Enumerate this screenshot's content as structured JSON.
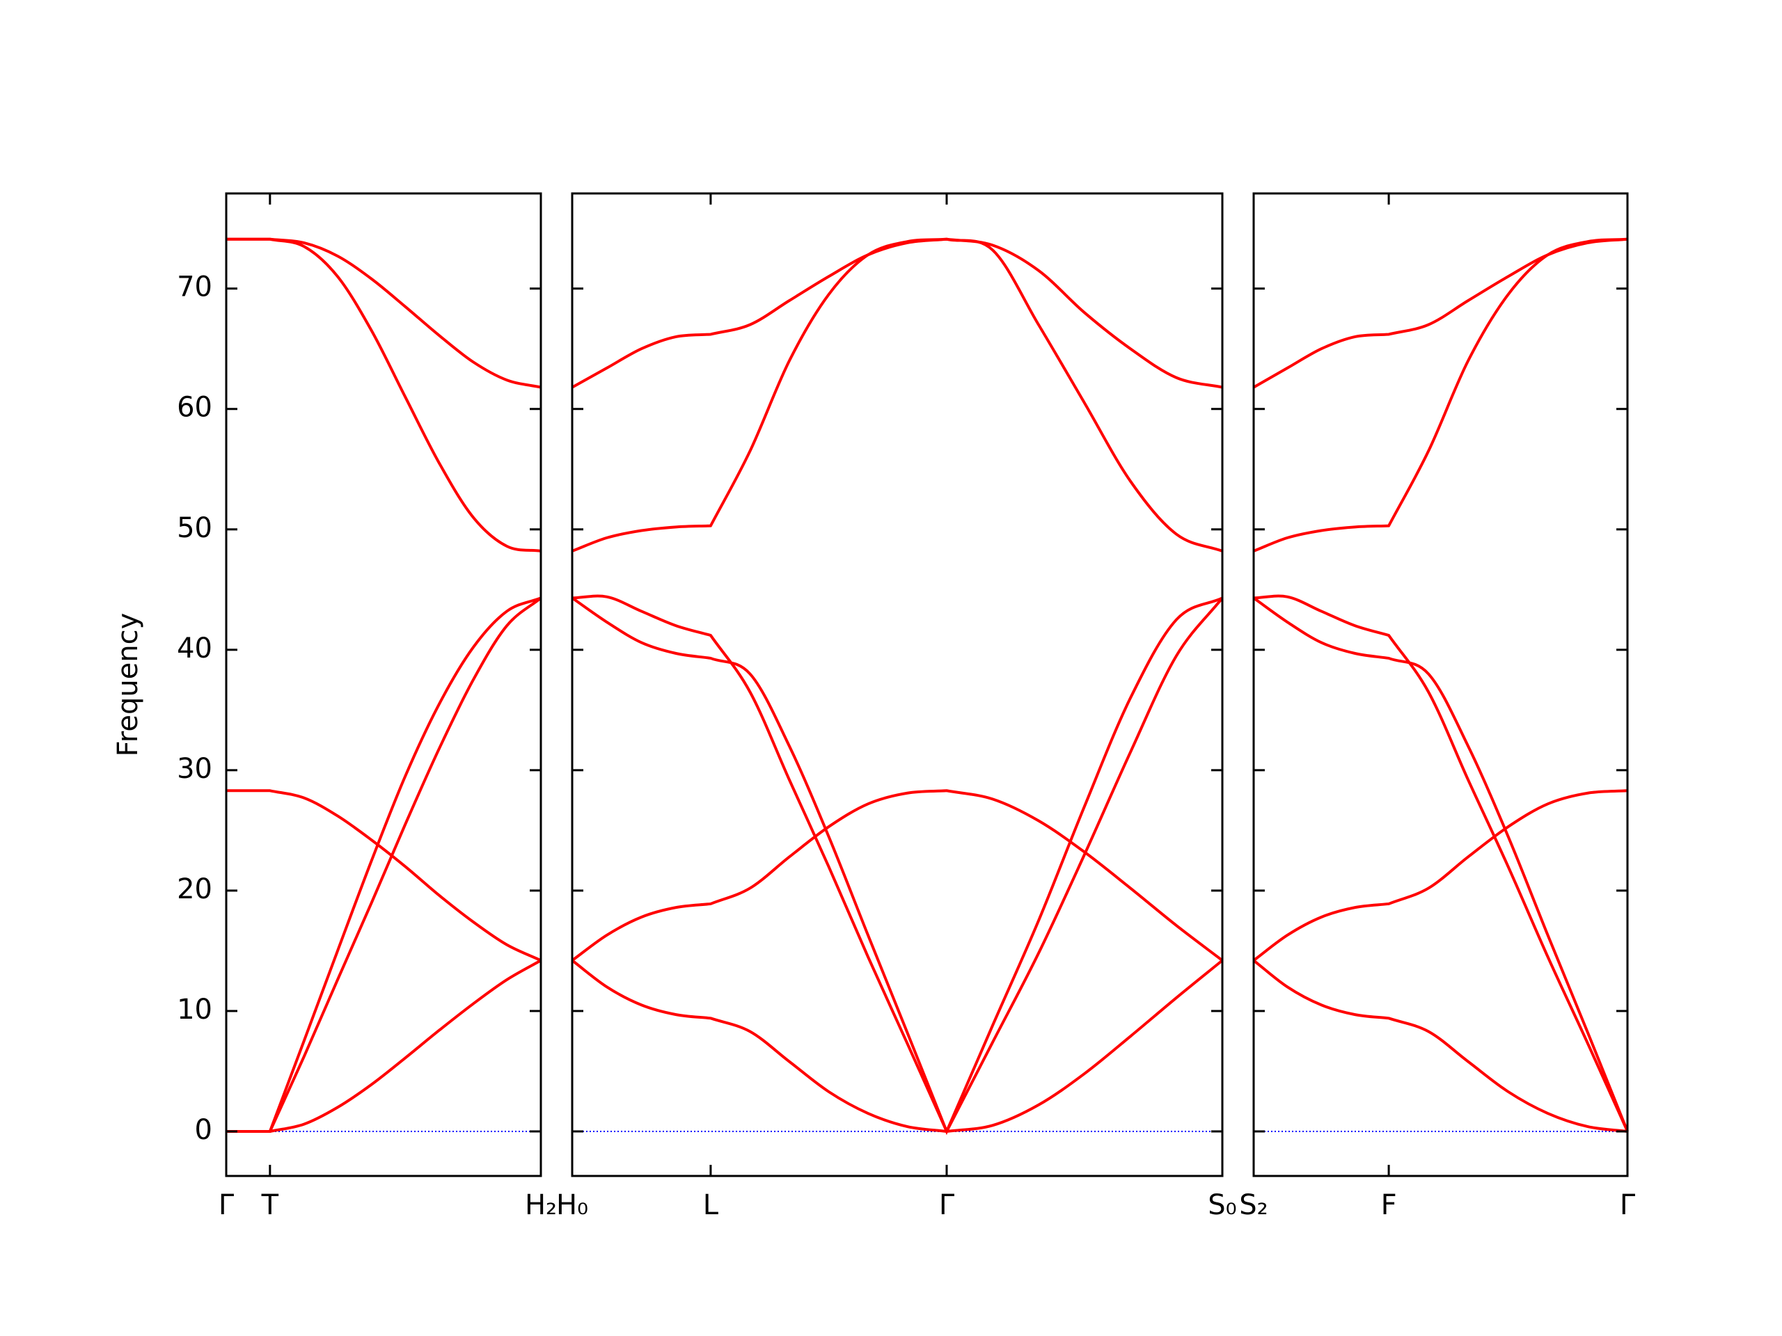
{
  "chart_data": [
    {
      "type": "line",
      "ylabel": "Frequency",
      "ylim": [
        -3.7,
        77.9
      ],
      "yticks": [
        0,
        10,
        20,
        30,
        40,
        50,
        60,
        70
      ],
      "xlim": [
        0,
        1
      ],
      "xticks": [
        {
          "value": 0,
          "label": "Γ"
        },
        {
          "value": 0.139,
          "label": "T"
        },
        {
          "value": 1,
          "label": "H₂"
        }
      ],
      "color": "#ff0000",
      "hline": 0,
      "hline_color": "#0000ff",
      "x": [
        0,
        0.139,
        0.247,
        0.354,
        0.462,
        0.569,
        0.677,
        0.785,
        0.892,
        1.0
      ],
      "series": [
        {
          "values": [
            0,
            0,
            0.6,
            2.0,
            3.9,
            6.1,
            8.4,
            10.6,
            12.6,
            14.2
          ]
        },
        {
          "values": [
            0,
            0,
            7.5,
            15,
            22.5,
            29.5,
            35.5,
            40.2,
            43.2,
            44.3
          ]
        },
        {
          "values": [
            0,
            0,
            6.2,
            12.6,
            19,
            25.5,
            31.8,
            37.5,
            42,
            44.3
          ]
        },
        {
          "values": [
            28.3,
            28.3,
            27.7,
            26.2,
            24.2,
            22,
            19.6,
            17.4,
            15.5,
            14.2
          ]
        },
        {
          "values": [
            74.1,
            74.1,
            73.5,
            71,
            66.5,
            61,
            55.5,
            51,
            48.6,
            48.2
          ]
        },
        {
          "values": [
            74.1,
            74.1,
            73.8,
            72.7,
            70.8,
            68.5,
            66.1,
            63.9,
            62.4,
            61.8
          ]
        }
      ]
    },
    {
      "type": "line",
      "xlim": [
        0,
        2.066
      ],
      "xticks": [
        {
          "value": 0,
          "label": "H₀"
        },
        {
          "value": 0.44,
          "label": "L"
        },
        {
          "value": 1.19,
          "label": "Γ"
        },
        {
          "value": 2.066,
          "label": "S₀"
        }
      ],
      "color": "#ff0000",
      "hline": 0,
      "hline_color": "#0000ff",
      "x": [
        0,
        0.11,
        0.22,
        0.33,
        0.44,
        0.565,
        0.69,
        0.815,
        0.94,
        1.065,
        1.19,
        1.336,
        1.482,
        1.628,
        1.774,
        1.92,
        2.066
      ],
      "series": [
        {
          "values": [
            61.8,
            63.4,
            65.0,
            66.0,
            66.2,
            67,
            69,
            71,
            72.8,
            73.8,
            74.1,
            73.6,
            71.5,
            68,
            65,
            62.6,
            61.8
          ]
        },
        {
          "values": [
            48.2,
            49.3,
            49.9,
            50.2,
            50.3,
            56.5,
            64,
            69.5,
            72.8,
            73.9,
            74.1,
            73.2,
            67,
            60.5,
            54,
            49.6,
            48.2
          ]
        },
        {
          "values": [
            44.3,
            44.4,
            43.2,
            42,
            41.2,
            36.5,
            29.2,
            22,
            14.5,
            7.3,
            0,
            7.4,
            14.8,
            23,
            31.5,
            39.5,
            44.3
          ]
        },
        {
          "values": [
            44.3,
            42.3,
            40.6,
            39.7,
            39.3,
            38,
            32,
            24.5,
            16.3,
            8.2,
            0,
            8.8,
            17.5,
            27,
            36,
            42.5,
            44.3
          ]
        },
        {
          "values": [
            14.2,
            16.3,
            17.8,
            18.6,
            18.9,
            20.2,
            22.8,
            25.3,
            27.2,
            28.1,
            28.3,
            27.6,
            25.8,
            23.2,
            20.2,
            17.1,
            14.2
          ]
        },
        {
          "values": [
            14.2,
            12,
            10.5,
            9.7,
            9.4,
            8.3,
            5.8,
            3.3,
            1.5,
            0.4,
            0,
            0.5,
            2.2,
            4.8,
            7.9,
            11.1,
            14.2
          ]
        }
      ]
    },
    {
      "type": "line",
      "xlim": [
        0,
        1.187
      ],
      "xticks": [
        {
          "value": 0,
          "label": "S₂"
        },
        {
          "value": 0.429,
          "label": "F"
        },
        {
          "value": 1.187,
          "label": "Γ"
        }
      ],
      "color": "#ff0000",
      "hline": 0,
      "hline_color": "#0000ff",
      "x": [
        0,
        0.107,
        0.215,
        0.322,
        0.429,
        0.555,
        0.681,
        0.808,
        0.934,
        1.061,
        1.187
      ],
      "series": [
        {
          "values": [
            61.8,
            63.4,
            65.0,
            66.0,
            66.2,
            67,
            69,
            71,
            72.8,
            73.8,
            74.1
          ]
        },
        {
          "values": [
            48.2,
            49.3,
            49.9,
            50.2,
            50.3,
            56.5,
            64,
            69.5,
            72.8,
            73.9,
            74.1
          ]
        },
        {
          "values": [
            44.3,
            44.4,
            43.2,
            42,
            41.2,
            36.5,
            29.2,
            22,
            14.5,
            7.3,
            0
          ]
        },
        {
          "values": [
            44.3,
            42.3,
            40.6,
            39.7,
            39.3,
            38,
            32,
            24.5,
            16.3,
            8.2,
            0
          ]
        },
        {
          "values": [
            14.2,
            16.3,
            17.8,
            18.6,
            18.9,
            20.2,
            22.8,
            25.3,
            27.2,
            28.1,
            28.3
          ]
        },
        {
          "values": [
            14.2,
            12,
            10.5,
            9.7,
            9.4,
            8.3,
            5.8,
            3.3,
            1.5,
            0.4,
            0
          ]
        }
      ]
    }
  ]
}
